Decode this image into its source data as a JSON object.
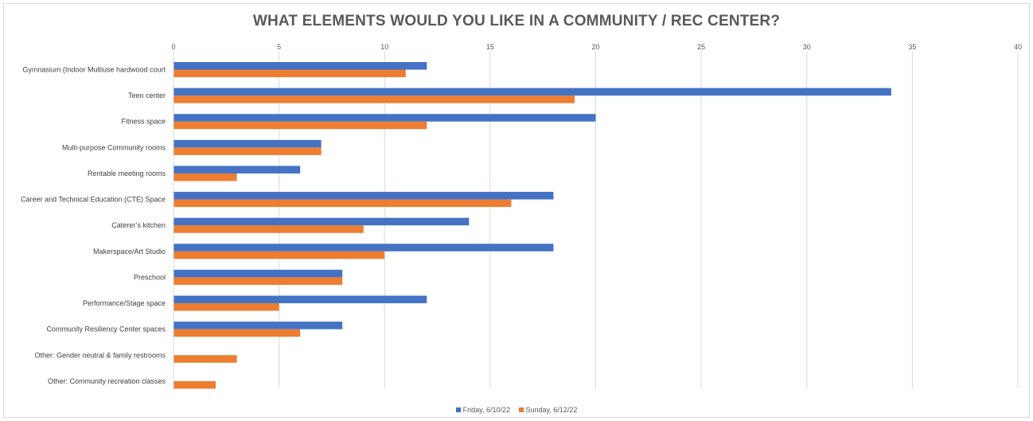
{
  "chart_data": {
    "type": "bar",
    "orientation": "horizontal",
    "title": "WHAT ELEMENTS WOULD YOU LIKE IN A COMMUNITY / REC CENTER?",
    "categories": [
      "Gymnasium (Indoor Multiuse hardwood court",
      "Teen center",
      "Fitness space",
      "Multi-purpose Community rooms",
      "Rentable meeting rooms",
      "Career and Technical Education (CTE) Space",
      "Caterer’s kitchen",
      "Makerspace/Art Studio",
      "Preschool",
      "Performance/Stage space",
      "Community Resiliency Center spaces",
      "Other: Gender neutral & family restrooms",
      "Other: Community recreation classes"
    ],
    "series": [
      {
        "name": "Friday, 6/10/22",
        "color": "#4472c4",
        "values": [
          12,
          34,
          20,
          7,
          6,
          18,
          14,
          18,
          8,
          12,
          8,
          0,
          0
        ]
      },
      {
        "name": "Sunday, 6/12/22",
        "color": "#ed7d31",
        "values": [
          11,
          19,
          12,
          7,
          3,
          16,
          9,
          10,
          8,
          5,
          6,
          3,
          2
        ]
      }
    ],
    "xlim": [
      0,
      40
    ],
    "xticks": [
      "0",
      "5",
      "10",
      "15",
      "20",
      "25",
      "30",
      "35",
      "40"
    ],
    "axis_position": "top",
    "grid": true,
    "legend_position": "bottom"
  }
}
